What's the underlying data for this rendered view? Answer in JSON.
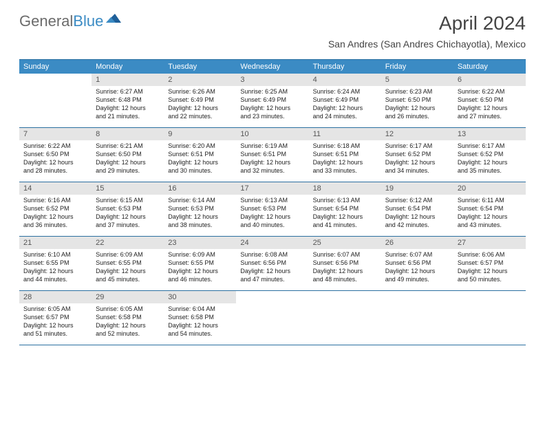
{
  "logo": {
    "textGeneral": "General",
    "textBlue": "Blue"
  },
  "title": "April 2024",
  "location": "San Andres (San Andres Chichayotla), Mexico",
  "colors": {
    "header_bg": "#3b8bc4",
    "header_text": "#ffffff",
    "daynum_bg": "#e5e5e5",
    "rule": "#2a6fa0",
    "text": "#222222"
  },
  "dayHeaders": [
    "Sunday",
    "Monday",
    "Tuesday",
    "Wednesday",
    "Thursday",
    "Friday",
    "Saturday"
  ],
  "weeks": [
    [
      {
        "num": "",
        "lines": []
      },
      {
        "num": "1",
        "lines": [
          "Sunrise: 6:27 AM",
          "Sunset: 6:48 PM",
          "Daylight: 12 hours",
          "and 21 minutes."
        ]
      },
      {
        "num": "2",
        "lines": [
          "Sunrise: 6:26 AM",
          "Sunset: 6:49 PM",
          "Daylight: 12 hours",
          "and 22 minutes."
        ]
      },
      {
        "num": "3",
        "lines": [
          "Sunrise: 6:25 AM",
          "Sunset: 6:49 PM",
          "Daylight: 12 hours",
          "and 23 minutes."
        ]
      },
      {
        "num": "4",
        "lines": [
          "Sunrise: 6:24 AM",
          "Sunset: 6:49 PM",
          "Daylight: 12 hours",
          "and 24 minutes."
        ]
      },
      {
        "num": "5",
        "lines": [
          "Sunrise: 6:23 AM",
          "Sunset: 6:50 PM",
          "Daylight: 12 hours",
          "and 26 minutes."
        ]
      },
      {
        "num": "6",
        "lines": [
          "Sunrise: 6:22 AM",
          "Sunset: 6:50 PM",
          "Daylight: 12 hours",
          "and 27 minutes."
        ]
      }
    ],
    [
      {
        "num": "7",
        "lines": [
          "Sunrise: 6:22 AM",
          "Sunset: 6:50 PM",
          "Daylight: 12 hours",
          "and 28 minutes."
        ]
      },
      {
        "num": "8",
        "lines": [
          "Sunrise: 6:21 AM",
          "Sunset: 6:50 PM",
          "Daylight: 12 hours",
          "and 29 minutes."
        ]
      },
      {
        "num": "9",
        "lines": [
          "Sunrise: 6:20 AM",
          "Sunset: 6:51 PM",
          "Daylight: 12 hours",
          "and 30 minutes."
        ]
      },
      {
        "num": "10",
        "lines": [
          "Sunrise: 6:19 AM",
          "Sunset: 6:51 PM",
          "Daylight: 12 hours",
          "and 32 minutes."
        ]
      },
      {
        "num": "11",
        "lines": [
          "Sunrise: 6:18 AM",
          "Sunset: 6:51 PM",
          "Daylight: 12 hours",
          "and 33 minutes."
        ]
      },
      {
        "num": "12",
        "lines": [
          "Sunrise: 6:17 AM",
          "Sunset: 6:52 PM",
          "Daylight: 12 hours",
          "and 34 minutes."
        ]
      },
      {
        "num": "13",
        "lines": [
          "Sunrise: 6:17 AM",
          "Sunset: 6:52 PM",
          "Daylight: 12 hours",
          "and 35 minutes."
        ]
      }
    ],
    [
      {
        "num": "14",
        "lines": [
          "Sunrise: 6:16 AM",
          "Sunset: 6:52 PM",
          "Daylight: 12 hours",
          "and 36 minutes."
        ]
      },
      {
        "num": "15",
        "lines": [
          "Sunrise: 6:15 AM",
          "Sunset: 6:53 PM",
          "Daylight: 12 hours",
          "and 37 minutes."
        ]
      },
      {
        "num": "16",
        "lines": [
          "Sunrise: 6:14 AM",
          "Sunset: 6:53 PM",
          "Daylight: 12 hours",
          "and 38 minutes."
        ]
      },
      {
        "num": "17",
        "lines": [
          "Sunrise: 6:13 AM",
          "Sunset: 6:53 PM",
          "Daylight: 12 hours",
          "and 40 minutes."
        ]
      },
      {
        "num": "18",
        "lines": [
          "Sunrise: 6:13 AM",
          "Sunset: 6:54 PM",
          "Daylight: 12 hours",
          "and 41 minutes."
        ]
      },
      {
        "num": "19",
        "lines": [
          "Sunrise: 6:12 AM",
          "Sunset: 6:54 PM",
          "Daylight: 12 hours",
          "and 42 minutes."
        ]
      },
      {
        "num": "20",
        "lines": [
          "Sunrise: 6:11 AM",
          "Sunset: 6:54 PM",
          "Daylight: 12 hours",
          "and 43 minutes."
        ]
      }
    ],
    [
      {
        "num": "21",
        "lines": [
          "Sunrise: 6:10 AM",
          "Sunset: 6:55 PM",
          "Daylight: 12 hours",
          "and 44 minutes."
        ]
      },
      {
        "num": "22",
        "lines": [
          "Sunrise: 6:09 AM",
          "Sunset: 6:55 PM",
          "Daylight: 12 hours",
          "and 45 minutes."
        ]
      },
      {
        "num": "23",
        "lines": [
          "Sunrise: 6:09 AM",
          "Sunset: 6:55 PM",
          "Daylight: 12 hours",
          "and 46 minutes."
        ]
      },
      {
        "num": "24",
        "lines": [
          "Sunrise: 6:08 AM",
          "Sunset: 6:56 PM",
          "Daylight: 12 hours",
          "and 47 minutes."
        ]
      },
      {
        "num": "25",
        "lines": [
          "Sunrise: 6:07 AM",
          "Sunset: 6:56 PM",
          "Daylight: 12 hours",
          "and 48 minutes."
        ]
      },
      {
        "num": "26",
        "lines": [
          "Sunrise: 6:07 AM",
          "Sunset: 6:56 PM",
          "Daylight: 12 hours",
          "and 49 minutes."
        ]
      },
      {
        "num": "27",
        "lines": [
          "Sunrise: 6:06 AM",
          "Sunset: 6:57 PM",
          "Daylight: 12 hours",
          "and 50 minutes."
        ]
      }
    ],
    [
      {
        "num": "28",
        "lines": [
          "Sunrise: 6:05 AM",
          "Sunset: 6:57 PM",
          "Daylight: 12 hours",
          "and 51 minutes."
        ]
      },
      {
        "num": "29",
        "lines": [
          "Sunrise: 6:05 AM",
          "Sunset: 6:58 PM",
          "Daylight: 12 hours",
          "and 52 minutes."
        ]
      },
      {
        "num": "30",
        "lines": [
          "Sunrise: 6:04 AM",
          "Sunset: 6:58 PM",
          "Daylight: 12 hours",
          "and 54 minutes."
        ]
      },
      {
        "num": "",
        "lines": []
      },
      {
        "num": "",
        "lines": []
      },
      {
        "num": "",
        "lines": []
      },
      {
        "num": "",
        "lines": []
      }
    ]
  ]
}
